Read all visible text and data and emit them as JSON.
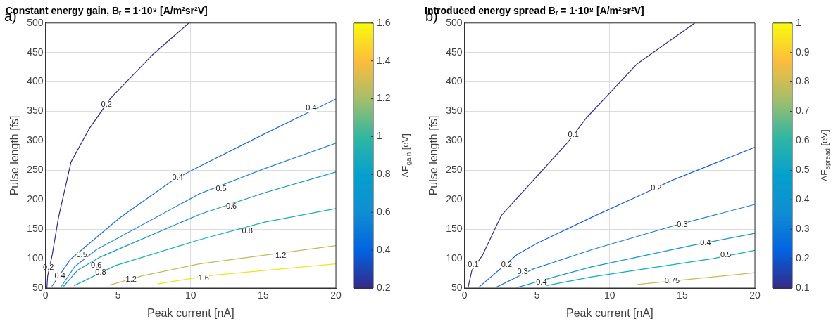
{
  "chart_data": [
    {
      "type": "line",
      "title": "Constant energy gain, Bᵣ = 1·10⁸ [A/m²sr²V]",
      "xlabel": "Peak current [nA]",
      "ylabel": "Pulse length [fs]",
      "clabel": "ΔE$_{gain}$ [eV]",
      "xlim": [
        0,
        20
      ],
      "ylim": [
        50,
        500
      ],
      "xticks": [
        0,
        5,
        10,
        15,
        20
      ],
      "yticks": [
        50,
        100,
        150,
        200,
        250,
        300,
        350,
        400,
        450,
        500
      ],
      "clim": [
        0.2,
        1.6
      ],
      "cticks": [
        0.2,
        0.4,
        0.6,
        0.8,
        1,
        1.2,
        1.4,
        1.6
      ],
      "grid": true,
      "legend": false,
      "marker": "none",
      "series": [
        {
          "color": "#352a87",
          "x": [
            0.1,
            0.15,
            0.47,
            0.9,
            1.76,
            3,
            4.47,
            7.37,
            9.87
          ],
          "values": [
            50,
            70,
            107,
            170,
            264,
            320,
            372,
            446,
            500
          ]
        },
        {
          "color": "#1c6cd9",
          "x": [
            0.44,
            1.73,
            5.1,
            8.66,
            10,
            15.1,
            20
          ],
          "values": [
            53,
            99,
            169,
            231,
            249,
            312,
            371
          ]
        },
        {
          "color": "#2685d6",
          "x": [
            1.1,
            2,
            3.5,
            10.6,
            15.1,
            20
          ],
          "values": [
            53,
            86,
            115,
            210,
            253,
            296
          ]
        },
        {
          "color": "#1295cf",
          "x": [
            1.25,
            2.2,
            3.8,
            10.6,
            15.1,
            20
          ],
          "values": [
            53,
            80,
            103,
            175,
            212,
            247
          ]
        },
        {
          "color": "#14aec6",
          "x": [
            1.97,
            4.8,
            10.6,
            15.1,
            20
          ],
          "values": [
            54,
            88,
            132,
            162,
            185
          ]
        },
        {
          "color": "#c6b85a",
          "x": [
            4.4,
            6.7,
            10.6,
            20
          ],
          "values": [
            55,
            71,
            91,
            122
          ]
        },
        {
          "color": "#f3e41a",
          "x": [
            7.7,
            9.95,
            11.6,
            20
          ],
          "values": [
            57,
            66,
            72,
            91
          ]
        }
      ],
      "annotations": [
        "a)",
        {
          "text": "0.2",
          "x": 4.2,
          "y": 362
        },
        {
          "text": "0.2",
          "x": 0.2,
          "y": 85
        },
        {
          "text": "0.4",
          "x": 9.1,
          "y": 237
        },
        {
          "text": "0.4",
          "x": 18.3,
          "y": 355
        },
        {
          "text": "0.4",
          "x": 1,
          "y": 70
        },
        {
          "text": "0.5",
          "x": 12.1,
          "y": 218
        },
        {
          "text": "0.5",
          "x": 2.5,
          "y": 106
        },
        {
          "text": "0.6",
          "x": 12.8,
          "y": 188
        },
        {
          "text": "0.6",
          "x": 3.5,
          "y": 88
        },
        {
          "text": "0.8",
          "x": 3.8,
          "y": 76
        },
        {
          "text": "0.8",
          "x": 13.9,
          "y": 147
        },
        {
          "text": "1.2",
          "x": 5.9,
          "y": 64
        },
        {
          "text": "1.2",
          "x": 16.2,
          "y": 105
        },
        {
          "text": "1.6",
          "x": 10.9,
          "y": 67
        }
      ]
    },
    {
      "type": "line",
      "title": "Introduced energy spread Bᵣ = 1·10⁸ [A/m²sr²V]",
      "xlabel": "Peak current [nA]",
      "ylabel": "Pulse length [fs]",
      "clabel": "ΔE$_{spread}$ [eV]",
      "xlim": [
        0,
        20
      ],
      "ylim": [
        50,
        500
      ],
      "xticks": [
        0,
        5,
        10,
        15,
        20
      ],
      "yticks": [
        50,
        100,
        150,
        200,
        250,
        300,
        350,
        400,
        450,
        500
      ],
      "clim": [
        0.1,
        1
      ],
      "cticks": [
        0.1,
        0.2,
        0.3,
        0.4,
        0.5,
        0.6,
        0.7,
        0.8,
        0.9,
        1
      ],
      "grid": true,
      "legend": false,
      "marker": "none",
      "series": [
        {
          "color": "#352a87",
          "x": [
            0.24,
            0.51,
            1.25,
            2.53,
            5,
            7.1,
            8.4,
            11.9,
            15.86
          ],
          "values": [
            50,
            80,
            106,
            173,
            240,
            297,
            339,
            431,
            500
          ]
        },
        {
          "color": "#1c5ee0",
          "x": [
            0.97,
            3.63,
            5,
            8.75,
            12.4,
            14.3,
            20
          ],
          "values": [
            51,
            107,
            126,
            170,
            211,
            233,
            289
          ]
        },
        {
          "color": "#1a78d8",
          "x": [
            2.16,
            4.7,
            8.75,
            14.3,
            20
          ],
          "values": [
            51,
            82,
            115,
            155,
            192
          ]
        },
        {
          "color": "#109ad0",
          "x": [
            3.63,
            6.2,
            8.75,
            15.6,
            20
          ],
          "values": [
            51,
            69,
            86,
            122,
            143
          ]
        },
        {
          "color": "#08b0c4",
          "x": [
            5.6,
            8.75,
            17.1,
            20
          ],
          "values": [
            54,
            69,
            100,
            114
          ]
        },
        {
          "color": "#cdb94f",
          "x": [
            11.9,
            20
          ],
          "values": [
            56,
            76
          ]
        }
      ],
      "annotations": [
        "b)",
        {
          "text": "0.1",
          "x": 7.5,
          "y": 310
        },
        {
          "text": "0.1",
          "x": 0.6,
          "y": 90
        },
        {
          "text": "0.2",
          "x": 13.2,
          "y": 220
        },
        {
          "text": "0.2",
          "x": 2.9,
          "y": 90
        },
        {
          "text": "0.3",
          "x": 15,
          "y": 158
        },
        {
          "text": "0.3",
          "x": 4,
          "y": 77
        },
        {
          "text": "0.4",
          "x": 16.6,
          "y": 126
        },
        {
          "text": "0.4",
          "x": 5.3,
          "y": 60
        },
        {
          "text": "0.5",
          "x": 18,
          "y": 106
        },
        {
          "text": "0.75",
          "x": 14.3,
          "y": 62
        }
      ]
    }
  ]
}
